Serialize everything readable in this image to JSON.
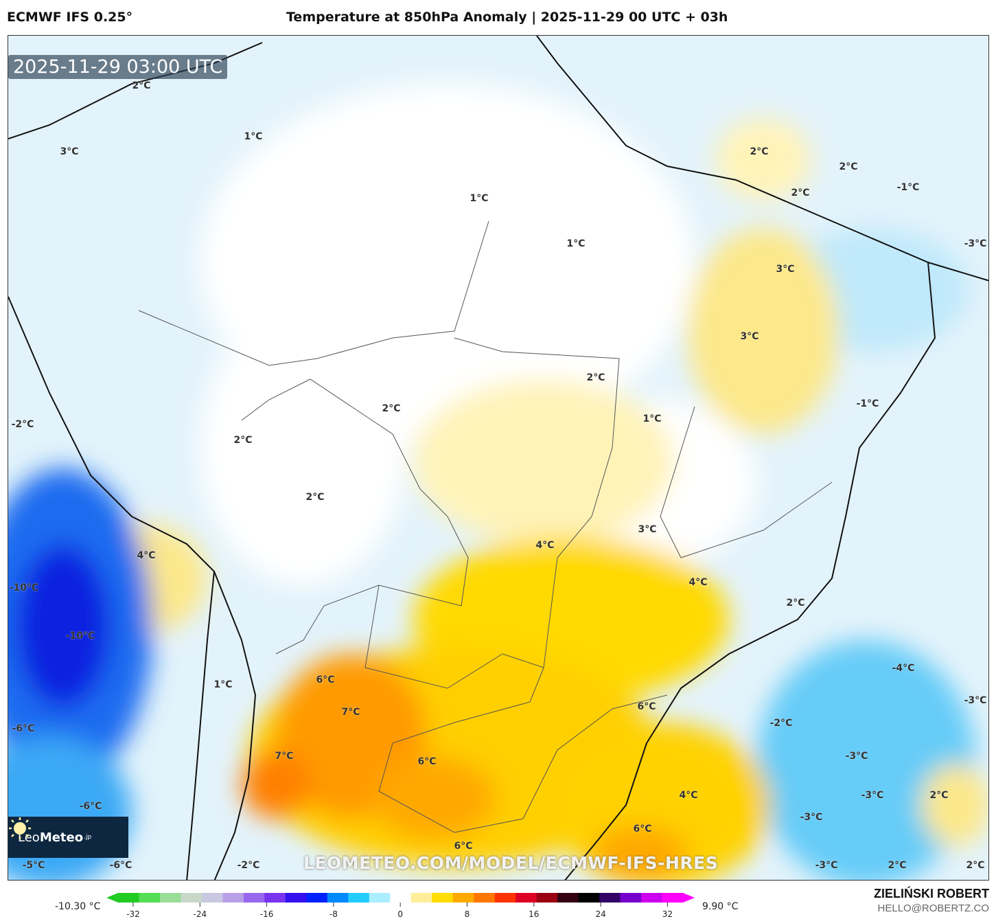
{
  "header": {
    "model": "ECMWF IFS 0.25°",
    "title": "Temperature at 850hPa Anomaly | 2025-11-29 00 UTC + 03h"
  },
  "map": {
    "timestamp": "2025-11-29 03:00 UTC",
    "watermark": "LEOMETEO.COM/MODEL/ECMWF-IFS-HRES",
    "logo": {
      "part1": "Leo",
      "part2": "Meteo",
      "suffix": ".jp"
    },
    "contour_labels": [
      "2°C",
      "1°C",
      "3°C",
      "1°C",
      "1°C",
      "2°C",
      "2°C",
      "2°C",
      "-1°C",
      "-3°C",
      "3°C",
      "3°C",
      "2°C",
      "2°C",
      "1°C",
      "-1°C",
      "-2°C",
      "2°C",
      "2°C",
      "3°C",
      "4°C",
      "4°C",
      "4°C",
      "2°C",
      "-10°C",
      "-10°C",
      "-4°C",
      "6°C",
      "1°C",
      "6°C",
      "-3°C",
      "7°C",
      "-2°C",
      "-6°C",
      "7°C",
      "6°C",
      "-3°C",
      "2°C",
      "-3°C",
      "4°C",
      "-6°C",
      "-3°C",
      "6°C",
      "6°C",
      "-5°C",
      "-6°C",
      "-2°C",
      "-3°C",
      "2°C",
      "2°C"
    ]
  },
  "colorbar": {
    "min_label": "-10.30 °C",
    "max_label": "9.90 °C",
    "ticks": [
      "-32",
      "-24",
      "-16",
      "-8",
      "0",
      "8",
      "16",
      "24",
      "32"
    ],
    "colors": [
      "#22cc22",
      "#55dd55",
      "#99dd99",
      "#c8d8c8",
      "#c8c8e0",
      "#b8a0e8",
      "#9966ee",
      "#7733ee",
      "#3311ee",
      "#0022ff",
      "#0088ff",
      "#22ccff",
      "#aaeeff",
      "#ffffff",
      "#ffee99",
      "#ffdd00",
      "#ffaa00",
      "#ff7700",
      "#ff3300",
      "#dd0022",
      "#990011",
      "#330011",
      "#000000",
      "#330066",
      "#7700cc",
      "#cc00ee",
      "#ff00ff"
    ]
  },
  "author": {
    "name": "ZIELIŃSKI ROBERT",
    "email": "HELLO@ROBERTZ.CO"
  }
}
